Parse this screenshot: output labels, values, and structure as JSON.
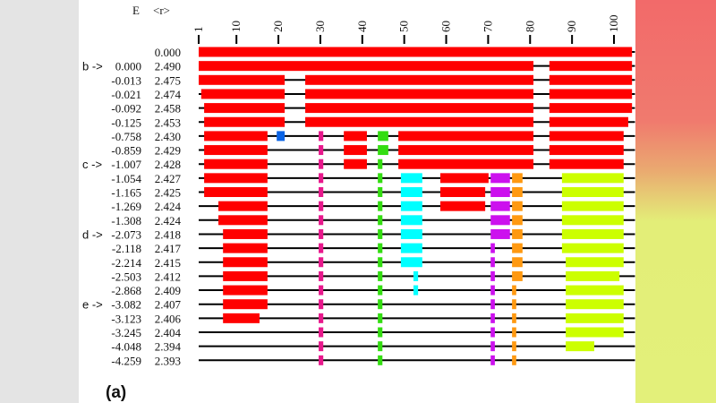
{
  "header": {
    "e_label": "E",
    "r_label": "<r>"
  },
  "panel_label": "(a)",
  "axis": {
    "range": [
      1,
      105
    ],
    "ticks": [
      1,
      10,
      20,
      30,
      40,
      50,
      60,
      70,
      80,
      90,
      100
    ]
  },
  "colors": {
    "R": "#ff0000",
    "B": "#0a64e6",
    "M": "#e8188c",
    "G": "#33dd11",
    "C": "#00ffff",
    "P": "#cc11ee",
    "O": "#ff9911",
    "Y": "#ccff00"
  },
  "rows": [
    {
      "marker": "",
      "E": "",
      "r": "0.000",
      "segs": [
        [
          1,
          104.3,
          "R"
        ]
      ]
    },
    {
      "marker": "b ->",
      "E": "0.000",
      "r": "2.490",
      "segs": [
        [
          1,
          80.8,
          "R"
        ],
        [
          84.6,
          104.3,
          "R"
        ]
      ]
    },
    {
      "marker": "",
      "E": "-0.013",
      "r": "2.475",
      "segs": [
        [
          1,
          21.5,
          "R"
        ],
        [
          26.4,
          80.8,
          "R"
        ],
        [
          84.6,
          104.3,
          "R"
        ]
      ]
    },
    {
      "marker": "",
      "E": "-0.021",
      "r": "2.474",
      "segs": [
        [
          1.6,
          21.5,
          "R"
        ],
        [
          26.4,
          80.8,
          "R"
        ],
        [
          84.6,
          104.3,
          "R"
        ]
      ]
    },
    {
      "marker": "",
      "E": "-0.092",
      "r": "2.458",
      "segs": [
        [
          2.3,
          21.5,
          "R"
        ],
        [
          26.4,
          80.8,
          "R"
        ],
        [
          84.6,
          104.3,
          "R"
        ]
      ]
    },
    {
      "marker": "",
      "E": "-0.125",
      "r": "2.453",
      "segs": [
        [
          2.3,
          21.5,
          "R"
        ],
        [
          26.4,
          80.8,
          "R"
        ],
        [
          84.6,
          103.4,
          "R"
        ]
      ]
    },
    {
      "marker": "",
      "E": "-0.758",
      "r": "2.430",
      "segs": [
        [
          2.3,
          17.4,
          "R"
        ],
        [
          19.6,
          21.5,
          "B"
        ],
        [
          29.6,
          30.7,
          "M"
        ],
        [
          35.6,
          41.1,
          "R"
        ],
        [
          43.7,
          46.2,
          "G"
        ],
        [
          48.6,
          80.8,
          "R"
        ],
        [
          84.6,
          102.3,
          "R"
        ]
      ]
    },
    {
      "marker": "",
      "E": "-0.859",
      "r": "2.429",
      "segs": [
        [
          2.3,
          17.4,
          "R"
        ],
        [
          29.6,
          30.7,
          "M"
        ],
        [
          35.6,
          41.1,
          "R"
        ],
        [
          43.7,
          46.2,
          "G"
        ],
        [
          48.6,
          80.8,
          "R"
        ],
        [
          84.6,
          102.3,
          "R"
        ]
      ]
    },
    {
      "marker": "c ->",
      "E": "-1.007",
      "r": "2.428",
      "segs": [
        [
          2.3,
          17.4,
          "R"
        ],
        [
          29.6,
          30.7,
          "M"
        ],
        [
          35.6,
          41.1,
          "R"
        ],
        [
          43.7,
          44.8,
          "G"
        ],
        [
          48.6,
          80.8,
          "R"
        ],
        [
          84.6,
          102.3,
          "R"
        ]
      ]
    },
    {
      "marker": "",
      "E": "-1.054",
      "r": "2.427",
      "segs": [
        [
          2.3,
          17.4,
          "R"
        ],
        [
          29.6,
          30.7,
          "M"
        ],
        [
          43.7,
          44.8,
          "G"
        ],
        [
          49.2,
          54.3,
          "C"
        ],
        [
          58.6,
          70.1,
          "R"
        ],
        [
          70.6,
          75.2,
          "P"
        ],
        [
          75.7,
          78.2,
          "O"
        ],
        [
          87.6,
          102.3,
          "Y"
        ]
      ]
    },
    {
      "marker": "",
      "E": "-1.165",
      "r": "2.425",
      "segs": [
        [
          2.3,
          17.4,
          "R"
        ],
        [
          29.6,
          30.7,
          "M"
        ],
        [
          43.7,
          44.8,
          "G"
        ],
        [
          49.2,
          54.3,
          "C"
        ],
        [
          58.6,
          69.3,
          "R"
        ],
        [
          70.6,
          75.2,
          "P"
        ],
        [
          75.7,
          78.2,
          "O"
        ],
        [
          87.6,
          102.3,
          "Y"
        ]
      ]
    },
    {
      "marker": "",
      "E": "-1.269",
      "r": "2.424",
      "segs": [
        [
          5.7,
          17.4,
          "R"
        ],
        [
          29.6,
          30.7,
          "M"
        ],
        [
          43.7,
          44.8,
          "G"
        ],
        [
          49.2,
          54.3,
          "C"
        ],
        [
          58.6,
          69.3,
          "R"
        ],
        [
          70.6,
          75.2,
          "P"
        ],
        [
          75.7,
          78.2,
          "O"
        ],
        [
          87.6,
          102.3,
          "Y"
        ]
      ]
    },
    {
      "marker": "",
      "E": "-1.308",
      "r": "2.424",
      "segs": [
        [
          5.7,
          17.4,
          "R"
        ],
        [
          29.6,
          30.7,
          "M"
        ],
        [
          43.7,
          44.8,
          "G"
        ],
        [
          49.2,
          54.3,
          "C"
        ],
        [
          70.6,
          75.2,
          "P"
        ],
        [
          75.7,
          78.2,
          "O"
        ],
        [
          87.6,
          102.3,
          "Y"
        ]
      ]
    },
    {
      "marker": "d ->",
      "E": "-2.073",
      "r": "2.418",
      "segs": [
        [
          6.8,
          17.4,
          "R"
        ],
        [
          29.6,
          30.7,
          "M"
        ],
        [
          43.7,
          44.8,
          "G"
        ],
        [
          49.2,
          54.3,
          "C"
        ],
        [
          70.6,
          75.2,
          "P"
        ],
        [
          75.7,
          78.2,
          "O"
        ],
        [
          87.6,
          102.3,
          "Y"
        ]
      ]
    },
    {
      "marker": "",
      "E": "-2.118",
      "r": "2.417",
      "segs": [
        [
          6.8,
          17.4,
          "R"
        ],
        [
          29.6,
          30.7,
          "M"
        ],
        [
          43.7,
          44.8,
          "G"
        ],
        [
          49.2,
          54.3,
          "C"
        ],
        [
          70.6,
          71.6,
          "P"
        ],
        [
          75.7,
          78.2,
          "O"
        ],
        [
          87.6,
          102.3,
          "Y"
        ]
      ]
    },
    {
      "marker": "",
      "E": "-2.214",
      "r": "2.415",
      "segs": [
        [
          6.8,
          17.4,
          "R"
        ],
        [
          29.6,
          30.7,
          "M"
        ],
        [
          43.7,
          44.8,
          "G"
        ],
        [
          49.2,
          54.3,
          "C"
        ],
        [
          70.6,
          71.6,
          "P"
        ],
        [
          75.7,
          78.2,
          "O"
        ],
        [
          88.5,
          102.3,
          "Y"
        ]
      ]
    },
    {
      "marker": "",
      "E": "-2.503",
      "r": "2.412",
      "segs": [
        [
          6.8,
          17.4,
          "R"
        ],
        [
          29.6,
          30.7,
          "M"
        ],
        [
          43.7,
          44.8,
          "G"
        ],
        [
          52.2,
          53.3,
          "C"
        ],
        [
          70.6,
          71.6,
          "P"
        ],
        [
          75.7,
          78.2,
          "O"
        ],
        [
          88.5,
          101.3,
          "Y"
        ]
      ]
    },
    {
      "marker": "",
      "E": "-2.868",
      "r": "2.409",
      "segs": [
        [
          6.8,
          17.4,
          "R"
        ],
        [
          29.6,
          30.7,
          "M"
        ],
        [
          43.7,
          44.8,
          "G"
        ],
        [
          52.2,
          53.3,
          "C"
        ],
        [
          70.6,
          71.6,
          "P"
        ],
        [
          75.7,
          76.7,
          "O"
        ],
        [
          88.5,
          102.3,
          "Y"
        ]
      ]
    },
    {
      "marker": "e ->",
      "E": "-3.082",
      "r": "2.407",
      "segs": [
        [
          6.8,
          17.4,
          "R"
        ],
        [
          29.6,
          30.7,
          "M"
        ],
        [
          43.7,
          44.8,
          "G"
        ],
        [
          70.6,
          71.6,
          "P"
        ],
        [
          75.7,
          76.7,
          "O"
        ],
        [
          88.5,
          102.3,
          "Y"
        ]
      ]
    },
    {
      "marker": "",
      "E": "-3.123",
      "r": "2.406",
      "segs": [
        [
          6.8,
          15.5,
          "R"
        ],
        [
          29.6,
          30.7,
          "M"
        ],
        [
          43.7,
          44.8,
          "G"
        ],
        [
          70.6,
          71.6,
          "P"
        ],
        [
          75.7,
          76.7,
          "O"
        ],
        [
          88.5,
          102.3,
          "Y"
        ]
      ]
    },
    {
      "marker": "",
      "E": "-3.245",
      "r": "2.404",
      "segs": [
        [
          29.6,
          30.7,
          "M"
        ],
        [
          43.7,
          44.8,
          "G"
        ],
        [
          70.6,
          71.6,
          "P"
        ],
        [
          75.7,
          76.7,
          "O"
        ],
        [
          88.5,
          102.3,
          "Y"
        ]
      ]
    },
    {
      "marker": "",
      "E": "-4.048",
      "r": "2.394",
      "segs": [
        [
          29.6,
          30.7,
          "M"
        ],
        [
          43.7,
          44.8,
          "G"
        ],
        [
          70.6,
          71.6,
          "P"
        ],
        [
          75.7,
          76.7,
          "O"
        ],
        [
          88.5,
          95.3,
          "Y"
        ]
      ]
    },
    {
      "marker": "",
      "E": "-4.259",
      "r": "2.393",
      "segs": [
        [
          29.6,
          30.7,
          "M"
        ],
        [
          43.7,
          44.8,
          "G"
        ],
        [
          70.6,
          71.6,
          "P"
        ],
        [
          75.7,
          76.7,
          "O"
        ]
      ]
    }
  ]
}
